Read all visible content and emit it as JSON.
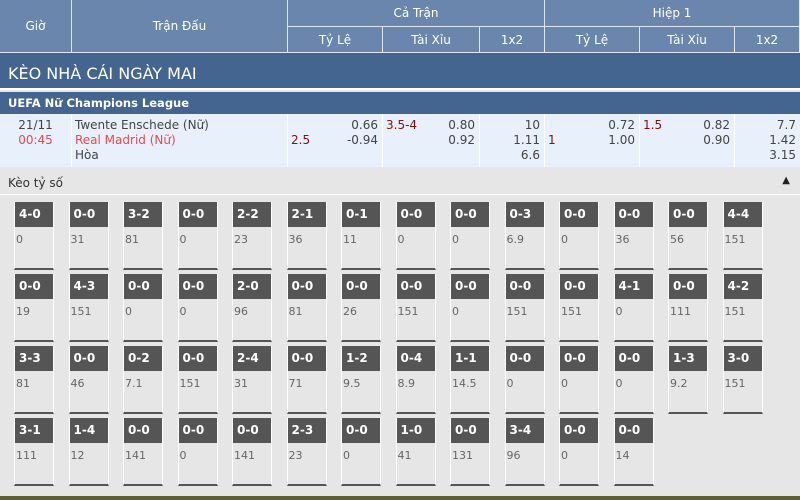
{
  "header": {
    "time": "Giờ",
    "match": "Trận Đấu",
    "full": "Cả Trận",
    "half": "Hiệp 1",
    "sub": [
      "Tỷ Lệ",
      "Tài Xỉu",
      "1x2",
      "Tỷ Lệ",
      "Tài Xỉu",
      "1x2"
    ]
  },
  "banner": "KÈO NHÀ CÁI NGÀY MAI",
  "league": "UEFA Nữ Champions League",
  "match": {
    "date": "21/11",
    "time": "00:45",
    "home": "Twente Enschede (Nữ)",
    "away": "Real Madrid (Nữ)",
    "draw": "Hòa",
    "ft_hdp_line": "2.5",
    "ft_hdp": [
      "0.66",
      "-0.94"
    ],
    "ft_ou_line": "3.5-4",
    "ft_ou": [
      "0.80",
      "0.92"
    ],
    "ft_1x2": [
      "10",
      "1.11",
      "6.6"
    ],
    "h1_hdp_line": "1",
    "h1_hdp": [
      "0.72",
      "1.00"
    ],
    "h1_ou_line": "1.5",
    "h1_ou": [
      "0.82",
      "0.90"
    ],
    "h1_1x2": [
      "7.7",
      "1.42",
      "3.15"
    ]
  },
  "score_section": {
    "title": "Kèo tỷ số",
    "collapse_icon": "triangle-up-icon",
    "rows": [
      [
        [
          "4-0",
          "0"
        ],
        [
          "0-0",
          "31"
        ],
        [
          "3-2",
          "81"
        ],
        [
          "0-0",
          "0"
        ],
        [
          "2-2",
          "23"
        ],
        [
          "2-1",
          "36"
        ],
        [
          "0-1",
          "11"
        ],
        [
          "0-0",
          "0"
        ],
        [
          "0-0",
          "0"
        ],
        [
          "0-3",
          "6.9"
        ],
        [
          "0-0",
          "0"
        ],
        [
          "0-0",
          "36"
        ],
        [
          "0-0",
          "56"
        ],
        [
          "4-4",
          "151"
        ]
      ],
      [
        [
          "0-0",
          "19"
        ],
        [
          "4-3",
          "151"
        ],
        [
          "0-0",
          "0"
        ],
        [
          "0-0",
          "0"
        ],
        [
          "2-0",
          "96"
        ],
        [
          "0-0",
          "81"
        ],
        [
          "0-0",
          "26"
        ],
        [
          "0-0",
          "151"
        ],
        [
          "0-0",
          "0"
        ],
        [
          "0-0",
          "151"
        ],
        [
          "0-0",
          "151"
        ],
        [
          "4-1",
          "0"
        ],
        [
          "0-0",
          "111"
        ],
        [
          "4-2",
          "151"
        ]
      ],
      [
        [
          "3-3",
          "81"
        ],
        [
          "0-0",
          "46"
        ],
        [
          "0-2",
          "7.1"
        ],
        [
          "0-0",
          "151"
        ],
        [
          "2-4",
          "31"
        ],
        [
          "0-0",
          "71"
        ],
        [
          "1-2",
          "9.5"
        ],
        [
          "0-4",
          "8.9"
        ],
        [
          "1-1",
          "14.5"
        ],
        [
          "0-0",
          "0"
        ],
        [
          "0-0",
          "0"
        ],
        [
          "0-0",
          "0"
        ],
        [
          "1-3",
          "9.2"
        ],
        [
          "3-0",
          "151"
        ]
      ],
      [
        [
          "3-1",
          "111"
        ],
        [
          "1-4",
          "12"
        ],
        [
          "0-0",
          "141"
        ],
        [
          "0-0",
          "0"
        ],
        [
          "0-0",
          "141"
        ],
        [
          "2-3",
          "23"
        ],
        [
          "0-0",
          "0"
        ],
        [
          "1-0",
          "41"
        ],
        [
          "0-0",
          "131"
        ],
        [
          "3-4",
          "96"
        ],
        [
          "0-0",
          "0"
        ],
        [
          "0-0",
          "14"
        ]
      ]
    ]
  }
}
